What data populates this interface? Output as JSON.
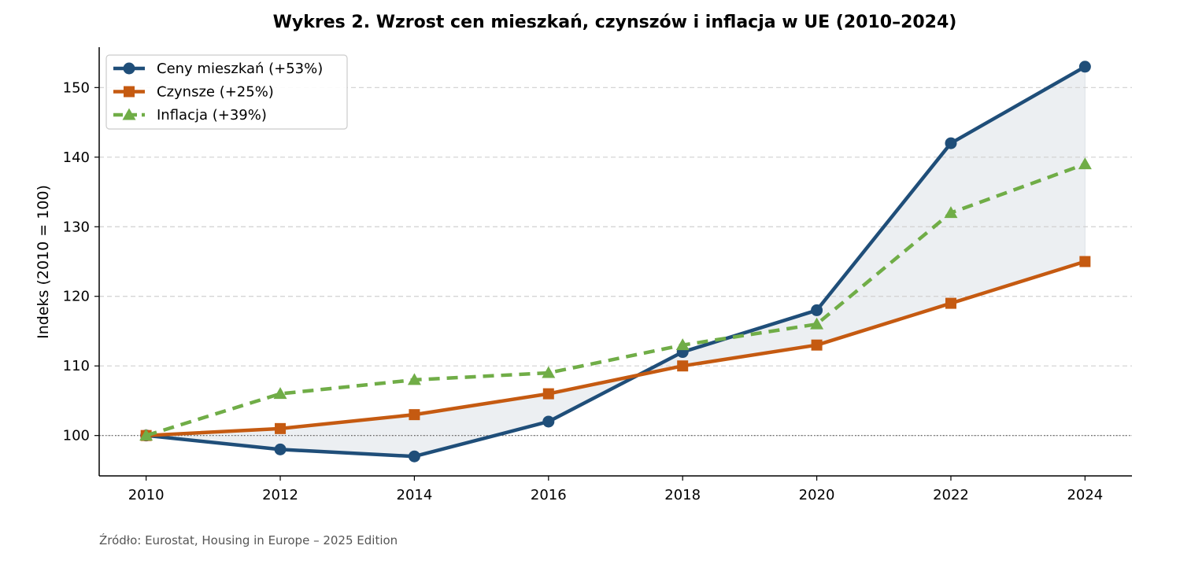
{
  "chart_data": {
    "type": "line",
    "title": "Wykres 2. Wzrost cen mieszkań, czynszów i inflacja w UE (2010–2024)",
    "xlabel": "",
    "ylabel": "Indeks (2010 = 100)",
    "x": [
      2010,
      2012,
      2014,
      2016,
      2018,
      2020,
      2022,
      2024
    ],
    "x_tick_labels": [
      "2010",
      "2012",
      "2014",
      "2016",
      "2018",
      "2020",
      "2022",
      "2024"
    ],
    "y_ticks": [
      100,
      110,
      120,
      130,
      140,
      150
    ],
    "y_tick_labels": [
      "100",
      "110",
      "120",
      "130",
      "140",
      "150"
    ],
    "xlim": [
      2009.3,
      2024.7
    ],
    "ylim": [
      94.2,
      155.8
    ],
    "grid": "horizontal-dashed",
    "reference_line": 100,
    "shaded_between": [
      "Ceny mieszkań",
      "Czynsze"
    ],
    "legend_position": "top-left",
    "series": [
      {
        "name": "Ceny mieszkań",
        "legend_label": "Ceny mieszkań (+53%)",
        "values": [
          100,
          98,
          97,
          102,
          112,
          118,
          142,
          153
        ],
        "color": "#1f4e79",
        "marker": "circle",
        "line_style": "solid"
      },
      {
        "name": "Czynsze",
        "legend_label": "Czynsze (+25%)",
        "values": [
          100,
          101,
          103,
          106,
          110,
          113,
          119,
          125
        ],
        "color": "#c55a11",
        "marker": "square",
        "line_style": "solid"
      },
      {
        "name": "Inflacja",
        "legend_label": "Inflacja (+39%)",
        "values": [
          100,
          106,
          108,
          109,
          113,
          116,
          132,
          139
        ],
        "color": "#70ad47",
        "marker": "triangle",
        "line_style": "dashed"
      }
    ],
    "source": "Źródło: Eurostat, Housing in Europe – 2025 Edition",
    "colors": {
      "fill": "#eceff2",
      "grid": "#d0d0d0",
      "axis": "#000000",
      "reference": "#555555",
      "source_text": "#555555"
    }
  }
}
